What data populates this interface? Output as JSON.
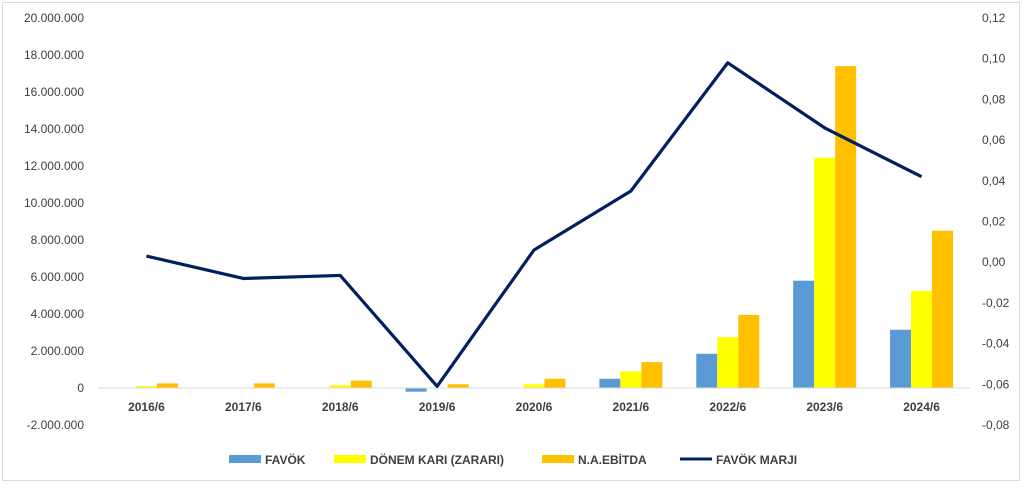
{
  "chart_data": {
    "type": "bar",
    "categories": [
      "2016/6",
      "2017/6",
      "2018/6",
      "2019/6",
      "2020/6",
      "2021/6",
      "2022/6",
      "2023/6",
      "2024/6"
    ],
    "series": [
      {
        "name": "FAVÖK",
        "type": "bar",
        "axis": "left",
        "color": "#5b9bd5",
        "values": [
          0,
          0,
          0,
          -200000,
          0,
          500000,
          1850000,
          5800000,
          3150000
        ]
      },
      {
        "name": "DÖNEM KARI (ZARARI)",
        "type": "bar",
        "axis": "left",
        "color": "#ffff00",
        "values": [
          100000,
          0,
          150000,
          0,
          200000,
          900000,
          2750000,
          12450000,
          5250000
        ]
      },
      {
        "name": "N.A.EBİTDA",
        "type": "bar",
        "axis": "left",
        "color": "#ffc000",
        "values": [
          250000,
          250000,
          400000,
          200000,
          500000,
          1400000,
          3950000,
          17400000,
          8500000
        ]
      },
      {
        "name": "FAVÖK MARJI",
        "type": "line",
        "axis": "right",
        "color": "#002060",
        "values": [
          0.003,
          -0.008,
          -0.0065,
          -0.061,
          0.006,
          0.035,
          0.098,
          0.066,
          0.042
        ]
      }
    ],
    "y_left": {
      "min": -2000000,
      "max": 20000000,
      "step": 2000000,
      "tick_labels": [
        "-2.000.000",
        "0",
        "2.000.000",
        "4.000.000",
        "6.000.000",
        "8.000.000",
        "10.000.000",
        "12.000.000",
        "14.000.000",
        "16.000.000",
        "18.000.000",
        "20.000.000"
      ]
    },
    "y_right": {
      "min": -0.08,
      "max": 0.12,
      "step": 0.02,
      "tick_labels": [
        "-0,08",
        "-0,06",
        "-0,04",
        "-0,02",
        "0,00",
        "0,02",
        "0,04",
        "0,06",
        "0,08",
        "0,10",
        "0,12"
      ]
    },
    "grid": false,
    "legend_position": "bottom"
  }
}
